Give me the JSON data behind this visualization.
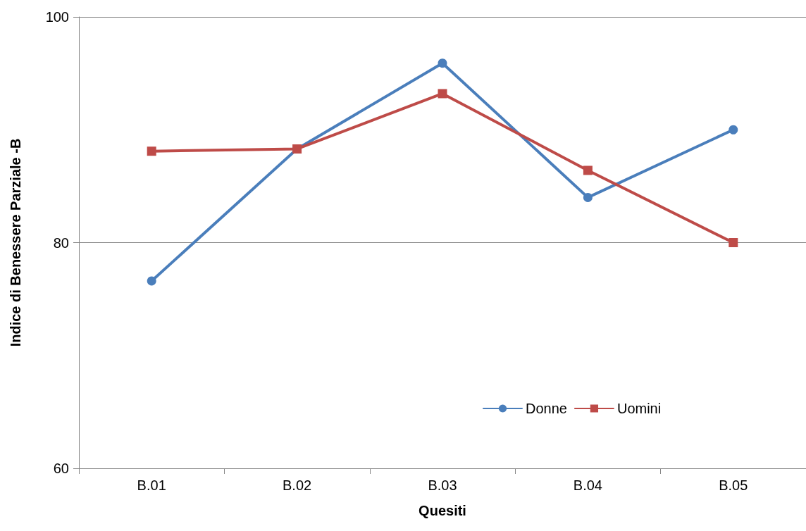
{
  "chart_data": {
    "type": "line",
    "xlabel": "Quesiti",
    "ylabel": "Indice di Benessere Parziale -B",
    "categories": [
      "B.01",
      "B.02",
      "B.03",
      "B.04",
      "B.05"
    ],
    "series": [
      {
        "name": "Donne",
        "color": "#4a7ebb",
        "marker": "circle",
        "values": [
          76.6,
          88.3,
          95.9,
          84.0,
          90.0
        ]
      },
      {
        "name": "Uomini",
        "color": "#be4b48",
        "marker": "square",
        "values": [
          88.1,
          88.3,
          93.2,
          86.4,
          80.0
        ]
      }
    ],
    "ylim": [
      60,
      100
    ],
    "yticks": [
      60,
      80,
      100
    ],
    "grid": "y",
    "legend": "bottom right",
    "line_style": "solid"
  }
}
